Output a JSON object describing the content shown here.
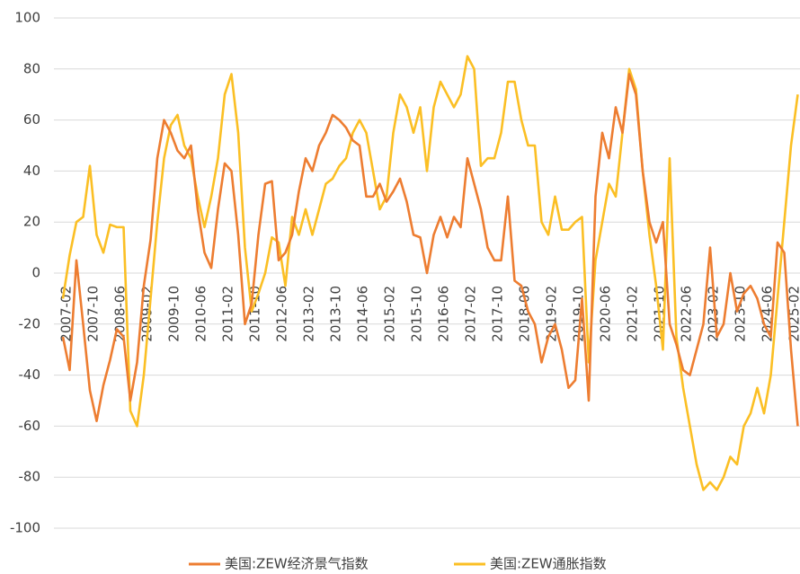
{
  "chart_data": {
    "type": "line",
    "categories": [
      "2007-02",
      null,
      null,
      null,
      "2007-10",
      null,
      null,
      null,
      "2008-06",
      null,
      null,
      null,
      "2009-02",
      null,
      null,
      null,
      "2009-10",
      null,
      null,
      null,
      "2010-06",
      null,
      null,
      null,
      "2011-02",
      null,
      null,
      null,
      "2011-10",
      null,
      null,
      null,
      "2012-06",
      null,
      null,
      null,
      "2013-02",
      null,
      null,
      null,
      "2013-10",
      null,
      null,
      null,
      "2014-06",
      null,
      null,
      null,
      "2015-02",
      null,
      null,
      null,
      "2015-10",
      null,
      null,
      null,
      "2016-06",
      null,
      null,
      null,
      "2017-02",
      null,
      null,
      null,
      "2017-10",
      null,
      null,
      null,
      "2018-06",
      null,
      null,
      null,
      "2019-02",
      null,
      null,
      null,
      "2019-10",
      null,
      null,
      null,
      "2020-06",
      null,
      null,
      null,
      "2021-02",
      null,
      null,
      null,
      "2021-10",
      null,
      null,
      null,
      "2022-06",
      null,
      null,
      null,
      "2023-02",
      null,
      null,
      null,
      "2023-10",
      null,
      null,
      null,
      "2024-06",
      null,
      null,
      null,
      "2025-02",
      null
    ],
    "series": [
      {
        "name": "美国:ZEW经济景气指数",
        "color": "#ed7d31",
        "values": [
          -25,
          -38,
          5,
          -20,
          -46,
          -58,
          -44,
          -34,
          -22,
          -25,
          -50,
          -35,
          -5,
          13,
          45,
          60,
          55,
          48,
          45,
          50,
          25,
          8,
          2,
          25,
          43,
          40,
          15,
          -20,
          -12,
          15,
          35,
          36,
          5,
          8,
          15,
          32,
          45,
          40,
          50,
          55,
          62,
          60,
          57,
          52,
          50,
          30,
          30,
          35,
          28,
          32,
          37,
          28,
          15,
          14,
          0,
          15,
          22,
          14,
          22,
          18,
          45,
          35,
          25,
          10,
          5,
          5,
          30,
          -3,
          -5,
          -15,
          -20,
          -35,
          -25,
          -20,
          -30,
          -45,
          -42,
          -10,
          -50,
          30,
          55,
          45,
          65,
          55,
          78,
          70,
          40,
          20,
          12,
          20,
          -20,
          -28,
          -38,
          -40,
          -30,
          -20,
          10,
          -25,
          -20,
          0,
          -15,
          -8,
          -5,
          -10,
          -20,
          -25,
          12,
          8,
          -30,
          -60
        ]
      },
      {
        "name": "美国:ZEW通胀指数",
        "color": "#fbbf24",
        "values": [
          -10,
          7,
          20,
          22,
          42,
          15,
          8,
          19,
          18,
          18,
          -54,
          -60,
          -40,
          -10,
          20,
          45,
          58,
          62,
          50,
          45,
          30,
          18,
          30,
          45,
          70,
          78,
          55,
          10,
          -15,
          -8,
          0,
          14,
          12,
          -5,
          22,
          15,
          25,
          15,
          25,
          35,
          37,
          42,
          45,
          55,
          60,
          55,
          40,
          25,
          30,
          55,
          70,
          65,
          55,
          65,
          40,
          65,
          75,
          70,
          65,
          70,
          85,
          80,
          42,
          45,
          45,
          55,
          75,
          75,
          60,
          50,
          50,
          20,
          15,
          30,
          17,
          17,
          20,
          22,
          -35,
          5,
          20,
          35,
          30,
          55,
          80,
          72,
          40,
          15,
          -5,
          -30,
          45,
          -25,
          -45,
          -60,
          -75,
          -85,
          -82,
          -85,
          -80,
          -72,
          -75,
          -60,
          -55,
          -45,
          -55,
          -40,
          -10,
          20,
          50,
          70
        ]
      }
    ],
    "ylim": [
      -100,
      100
    ],
    "yticks": [
      -100,
      -80,
      -60,
      -40,
      -20,
      0,
      20,
      40,
      60,
      80,
      100
    ],
    "grid": true
  }
}
